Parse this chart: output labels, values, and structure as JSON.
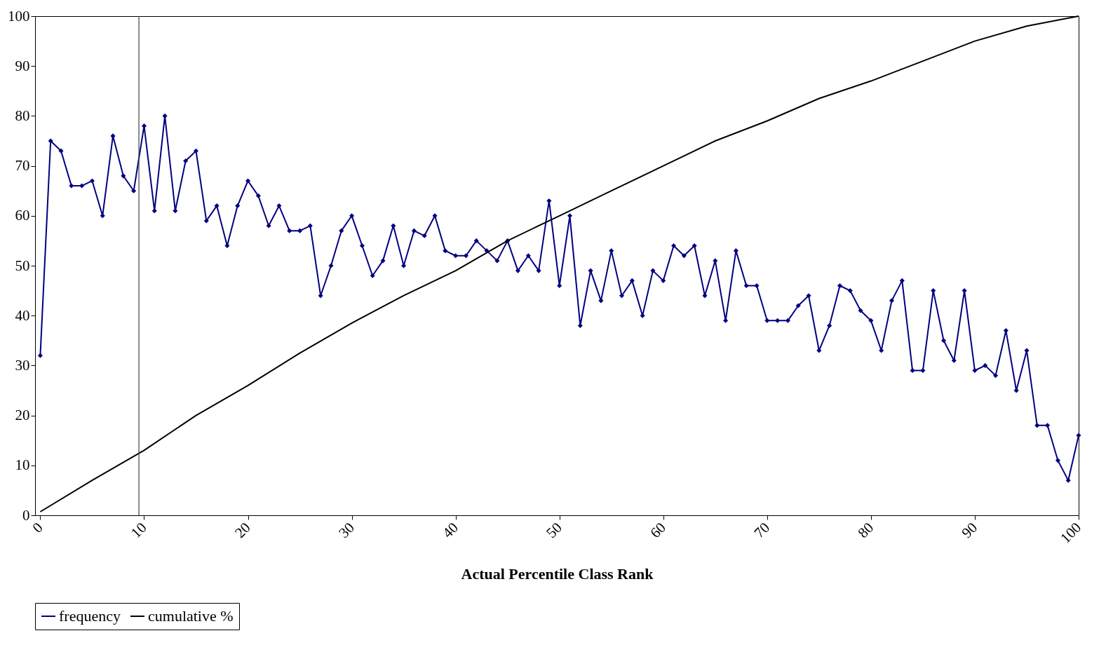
{
  "chart_data": {
    "type": "line",
    "xlabel": "Actual Percentile Class Rank",
    "x": [
      0,
      1,
      2,
      3,
      4,
      5,
      6,
      7,
      8,
      9,
      10,
      11,
      12,
      13,
      14,
      15,
      16,
      17,
      18,
      19,
      20,
      21,
      22,
      23,
      24,
      25,
      26,
      27,
      28,
      29,
      30,
      31,
      32,
      33,
      34,
      35,
      36,
      37,
      38,
      39,
      40,
      41,
      42,
      43,
      44,
      45,
      46,
      47,
      48,
      49,
      50,
      51,
      52,
      53,
      54,
      55,
      56,
      57,
      58,
      59,
      60,
      61,
      62,
      63,
      64,
      65,
      66,
      67,
      68,
      69,
      70,
      71,
      72,
      73,
      74,
      75,
      76,
      77,
      78,
      79,
      80,
      81,
      82,
      83,
      84,
      85,
      86,
      87,
      88,
      89,
      90,
      91,
      92,
      93,
      94,
      95,
      96,
      97,
      98,
      99,
      100
    ],
    "series": [
      {
        "name": "frequency",
        "color": "#000080",
        "marker": "diamond",
        "values": [
          32,
          75,
          73,
          66,
          66,
          67,
          60,
          76,
          68,
          65,
          78,
          61,
          80,
          61,
          71,
          73,
          59,
          62,
          54,
          62,
          67,
          64,
          58,
          62,
          57,
          57,
          58,
          44,
          50,
          57,
          60,
          54,
          48,
          51,
          58,
          50,
          57,
          56,
          60,
          53,
          52,
          52,
          55,
          53,
          51,
          55,
          49,
          52,
          49,
          63,
          46,
          60,
          38,
          49,
          43,
          53,
          44,
          47,
          40,
          49,
          47,
          54,
          52,
          54,
          44,
          51,
          39,
          53,
          46,
          46,
          39,
          39,
          39,
          42,
          44,
          33,
          38,
          46,
          45,
          41,
          39,
          33,
          43,
          47,
          29,
          29,
          45,
          35,
          31,
          45,
          29,
          30,
          28,
          37,
          25,
          33,
          18,
          18,
          11,
          7,
          16
        ]
      },
      {
        "name": "cumulative %",
        "color": "#000000",
        "marker": "none",
        "x": [
          0,
          5,
          10,
          15,
          20,
          25,
          30,
          35,
          40,
          45,
          50,
          55,
          60,
          65,
          70,
          75,
          80,
          85,
          90,
          95,
          100
        ],
        "values": [
          0.7,
          7,
          13,
          20,
          26,
          32.5,
          38.5,
          44,
          49,
          55,
          60,
          65,
          70,
          75,
          79,
          83.5,
          87,
          91,
          95,
          98,
          100
        ]
      }
    ],
    "xlim": [
      -0.5,
      100
    ],
    "xticks": [
      0,
      10,
      20,
      30,
      40,
      50,
      60,
      70,
      80,
      90,
      100
    ],
    "ylim": [
      0,
      100
    ],
    "yticks": [
      0,
      10,
      20,
      30,
      40,
      50,
      60,
      70,
      80,
      90,
      100
    ],
    "ref_lines": [
      {
        "axis": "x",
        "value": 9.5,
        "color": "#404040"
      }
    ],
    "grid": false,
    "legend": "bottom",
    "line_style": "solid"
  }
}
